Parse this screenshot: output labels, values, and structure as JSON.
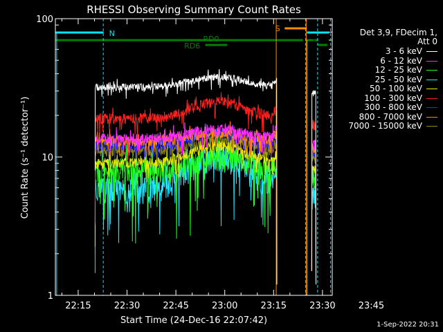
{
  "chart_data": {
    "type": "line",
    "title": "RHESSI Observing Summary Count Rates",
    "xlabel": "Start Time (24-Dec-16 22:07:42)",
    "ylabel": "Count Rate (s⁻¹ detector⁻¹)",
    "yscale": "log",
    "ylim": [
      1,
      100
    ],
    "xlim_minutes": [
      8,
      93
    ],
    "x_ticks": [
      {
        "m": 15,
        "label": "22:15"
      },
      {
        "m": 30,
        "label": "22:30"
      },
      {
        "m": 45,
        "label": "22:45"
      },
      {
        "m": 60,
        "label": "23:00"
      },
      {
        "m": 75,
        "label": "23:15"
      },
      {
        "m": 90,
        "label": "23:30"
      },
      {
        "m": 105,
        "label": "23:45"
      }
    ],
    "y_ticks": [
      {
        "v": 100,
        "label": "100"
      },
      {
        "v": 10,
        "label": "10"
      },
      {
        "v": 1,
        "label": "1"
      }
    ],
    "legend_header": [
      "Det 3,9, FDecim 1,",
      "Att 0"
    ],
    "series": [
      {
        "name": "3 - 6 keV",
        "color": "#ffffff",
        "base": 32,
        "peak": 38
      },
      {
        "name": "6 - 12 keV",
        "color": "#ff2bff",
        "base": 13.5,
        "peak": 16
      },
      {
        "name": "12 - 25 keV",
        "color": "#22ff22",
        "base": 8,
        "peak": 10
      },
      {
        "name": "25 - 50 keV",
        "color": "#22e5ff",
        "base": 5.8,
        "peak": 10
      },
      {
        "name": "50 - 100 keV",
        "color": "#e8e800",
        "base": 9,
        "peak": 12
      },
      {
        "name": "100 - 300 keV",
        "color": "#ff2020",
        "base": 19,
        "peak": 25
      },
      {
        "name": "300 - 800 keV",
        "color": "#2a2aff",
        "base": 12,
        "peak": 15
      },
      {
        "name": "800 - 7000 keV",
        "color": "#ff8c00",
        "base": 13,
        "peak": 15
      },
      {
        "name": "7000 - 15000 keV",
        "color": "#8a8a00",
        "base": 11,
        "peak": 13
      }
    ],
    "flags": [
      {
        "label": "N",
        "color": "#00e5ff"
      },
      {
        "label": "RD0",
        "color": "#008000"
      },
      {
        "label": "RD6",
        "color": "#008000"
      },
      {
        "label": "S",
        "color": "#ff8c00"
      }
    ]
  },
  "timestamp": "1-Sep-2022 20:31"
}
